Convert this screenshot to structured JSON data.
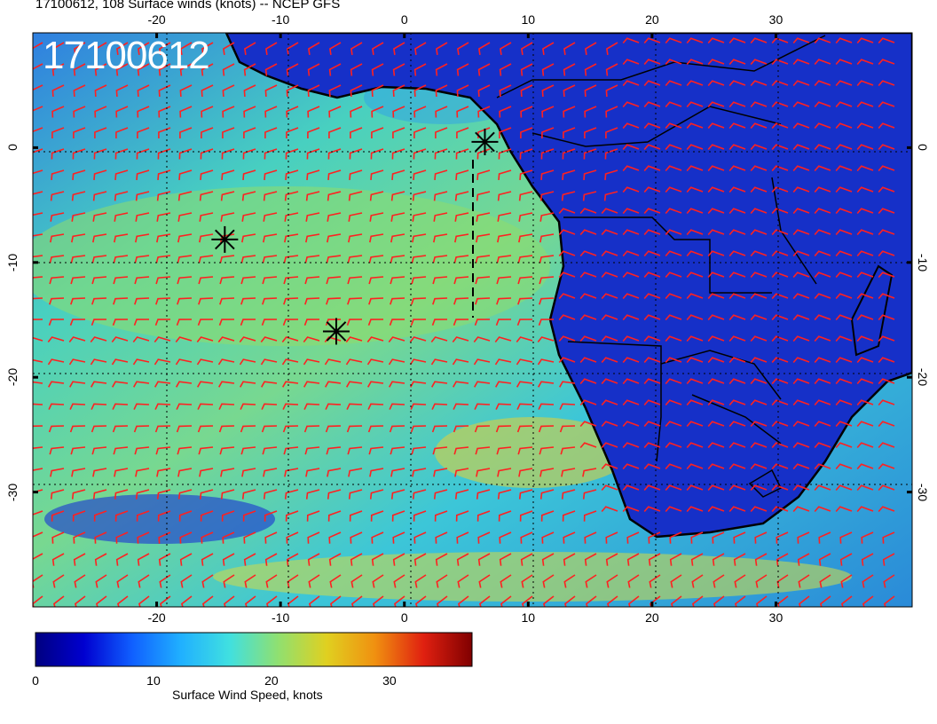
{
  "title": "17100612, 108 Surface winds (knots) -- NCEP GFS",
  "stamp": "17100612",
  "lon_ticks": [
    "-20",
    "-10",
    "0",
    "10",
    "20",
    "30"
  ],
  "lon_tick_values": [
    -20,
    -10,
    0,
    10,
    20,
    30
  ],
  "lat_ticks": [
    "0",
    "-10",
    "-20",
    "-30"
  ],
  "lat_tick_values": [
    0,
    -10,
    -20,
    -30
  ],
  "map_extent": {
    "lon": [
      -30,
      41
    ],
    "lat": [
      -40,
      10
    ]
  },
  "markers": [
    {
      "lon": 6.5,
      "lat": 0.5
    },
    {
      "lon": -14.5,
      "lat": -8
    },
    {
      "lon": -5.5,
      "lat": -16
    }
  ],
  "colorbar": {
    "label": "Surface Wind Speed, knots",
    "ticks": [
      "0",
      "10",
      "20",
      "30"
    ],
    "tick_values": [
      0,
      10,
      20,
      30
    ],
    "range": [
      0,
      37
    ],
    "colors": [
      "#000080",
      "#0000d0",
      "#1060ff",
      "#20b0ff",
      "#40e0e0",
      "#90e070",
      "#e0d020",
      "#f09010",
      "#e02010",
      "#800000"
    ]
  },
  "colors": {
    "barb": "#ff2020",
    "ocean_high": "#60d080",
    "ocean_mid": "#30b8e0",
    "land": "#1028c0"
  }
}
